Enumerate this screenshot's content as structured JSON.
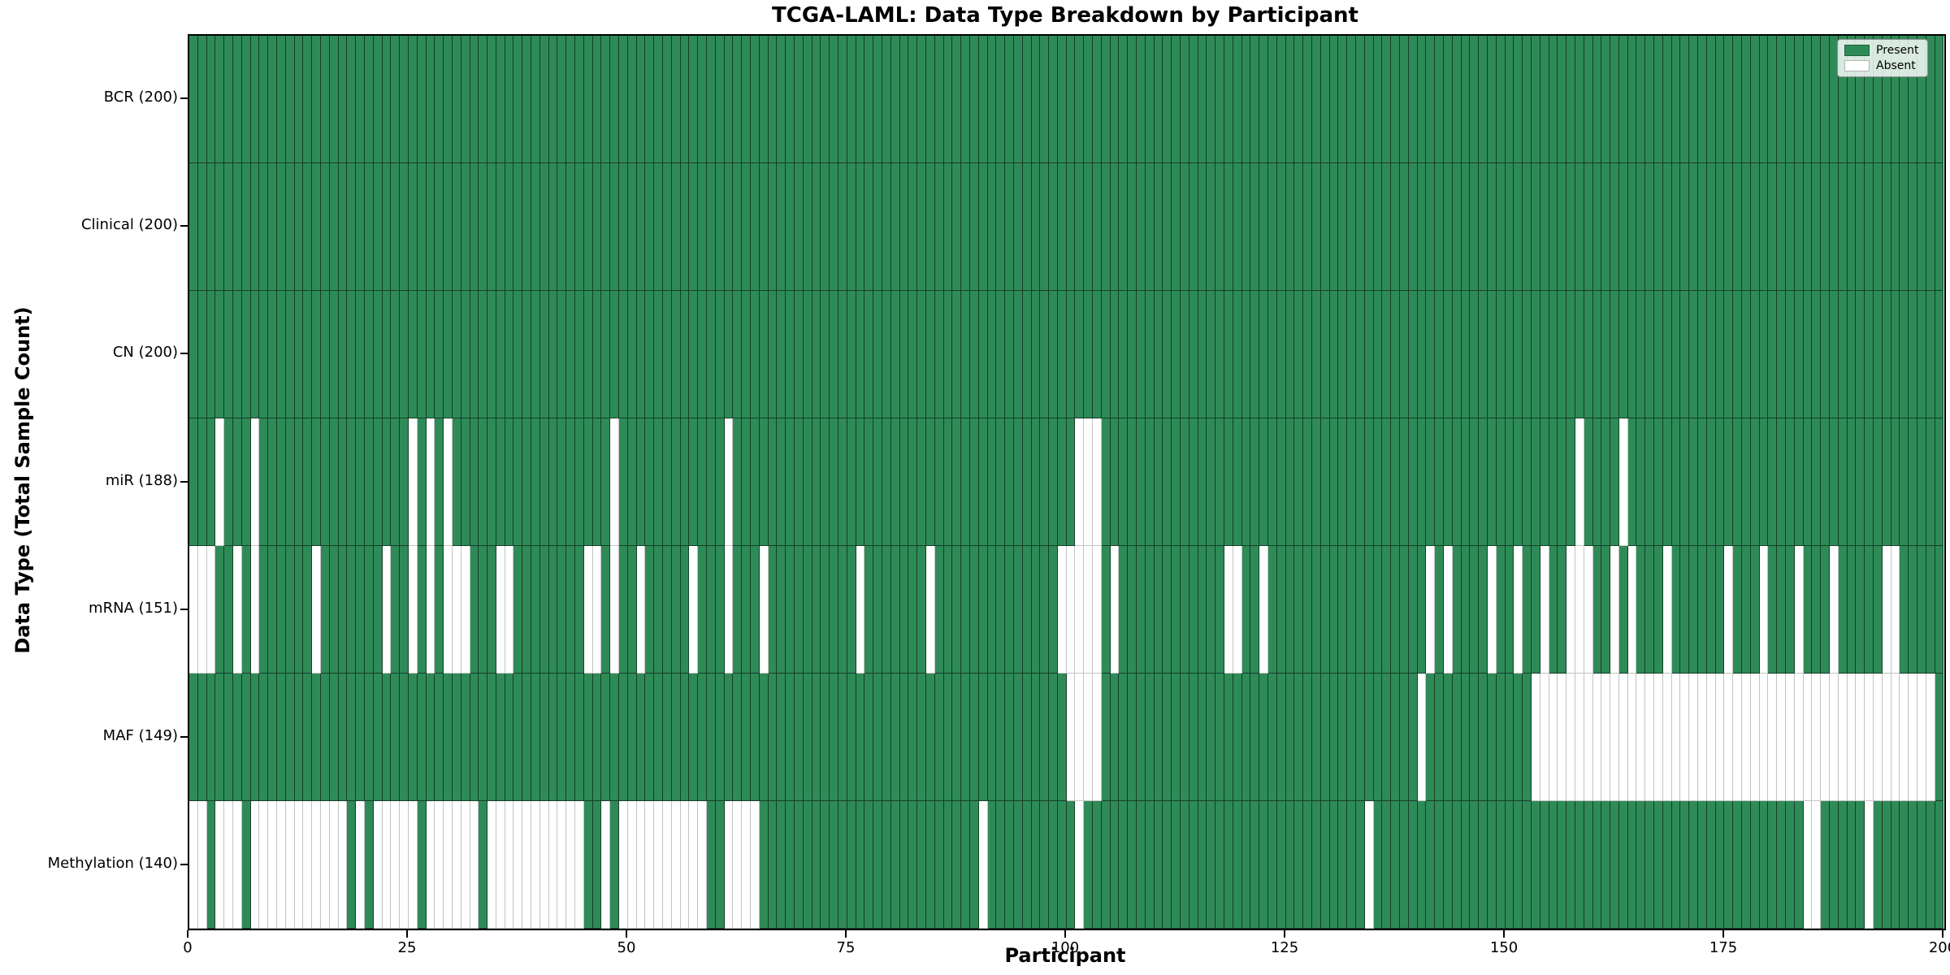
{
  "title": "TCGA-LAML: Data Type Breakdown by Participant",
  "xlabel": "Participant",
  "ylabel": "Data Type (Total Sample Count)",
  "legend": {
    "present_label": "Present",
    "absent_label": "Absent"
  },
  "colors": {
    "present": "#2e8b57",
    "absent": "#ffffff",
    "present_edge": "rgba(0,0,0,0.55)",
    "absent_edge": "#c3c3c3"
  },
  "chart_data": {
    "type": "heatmap",
    "title": "TCGA-LAML: Data Type Breakdown by Participant",
    "xlabel": "Participant",
    "ylabel": "Data Type (Total Sample Count)",
    "legend_entries": [
      "Present",
      "Absent"
    ],
    "legend_position": "upper right",
    "n_participants": 200,
    "x_range": [
      0,
      200
    ],
    "x_ticks": [
      0,
      25,
      50,
      75,
      100,
      125,
      150,
      175,
      200
    ],
    "value_encoding": {
      "present": 1,
      "absent": 0
    },
    "rows": [
      {
        "name": "BCR",
        "label": "BCR (200)",
        "present_count": 200,
        "absent_indices": []
      },
      {
        "name": "Clinical",
        "label": "Clinical (200)",
        "present_count": 200,
        "absent_indices": []
      },
      {
        "name": "CN",
        "label": "CN (200)",
        "present_count": 200,
        "absent_indices": []
      },
      {
        "name": "miR",
        "label": "miR (188)",
        "present_count": 188,
        "absent_indices": [
          3,
          7,
          25,
          27,
          29,
          48,
          61,
          101,
          102,
          103,
          158,
          163
        ]
      },
      {
        "name": "mRNA",
        "label": "mRNA (151)",
        "present_count": 151,
        "absent_indices": [
          0,
          1,
          2,
          5,
          7,
          14,
          22,
          25,
          27,
          29,
          30,
          31,
          35,
          36,
          45,
          46,
          48,
          51,
          57,
          61,
          65,
          76,
          84,
          99,
          100,
          101,
          102,
          103,
          105,
          118,
          119,
          122,
          141,
          143,
          148,
          151,
          154,
          157,
          158,
          159,
          162,
          164,
          168,
          175,
          179,
          183,
          187,
          193,
          194
        ]
      },
      {
        "name": "MAF",
        "label": "MAF (149)",
        "present_count": 149,
        "absent_indices": [
          100,
          101,
          102,
          103,
          140,
          153,
          154,
          155,
          156,
          157,
          158,
          159,
          160,
          161,
          162,
          163,
          164,
          165,
          166,
          167,
          168,
          169,
          170,
          171,
          172,
          173,
          174,
          175,
          176,
          177,
          178,
          179,
          180,
          181,
          182,
          183,
          184,
          185,
          186,
          187,
          188,
          189,
          190,
          191,
          192,
          193,
          194,
          195,
          196,
          197,
          198
        ]
      },
      {
        "name": "Methylation",
        "label": "Methylation (140)",
        "present_count": 140,
        "absent_indices": [
          0,
          1,
          3,
          4,
          5,
          7,
          8,
          9,
          10,
          11,
          12,
          13,
          14,
          15,
          16,
          17,
          19,
          21,
          22,
          23,
          24,
          25,
          27,
          28,
          29,
          30,
          31,
          32,
          34,
          35,
          36,
          37,
          38,
          39,
          40,
          41,
          42,
          43,
          44,
          47,
          49,
          50,
          51,
          52,
          53,
          54,
          55,
          56,
          57,
          58,
          61,
          62,
          63,
          64,
          90,
          101,
          134,
          184,
          185,
          191
        ]
      }
    ]
  }
}
